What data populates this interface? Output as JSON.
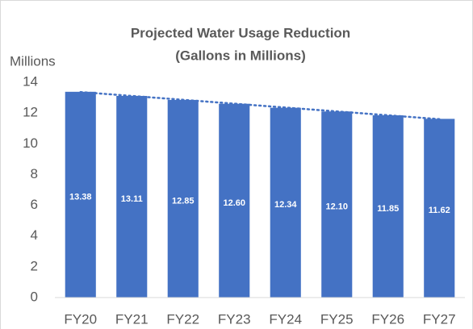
{
  "chart_data": {
    "type": "bar",
    "title": "Projected Water Usage Reduction",
    "subtitle": "(Gallons in Millions)",
    "y_label": "Millions",
    "categories": [
      "FY20",
      "FY21",
      "FY22",
      "FY23",
      "FY24",
      "FY25",
      "FY26",
      "FY27"
    ],
    "values": [
      13.38,
      13.11,
      12.85,
      12.6,
      12.34,
      12.1,
      11.85,
      11.62
    ],
    "value_labels": [
      "13.38",
      "13.11",
      "12.85",
      "12.60",
      "12.34",
      "12.10",
      "11.85",
      "11.62"
    ],
    "color": "#4472c4",
    "trendline": true,
    "ylim": [
      0,
      14
    ],
    "yticks": [
      0,
      2,
      4,
      6,
      8,
      10,
      12,
      14
    ],
    "grid": false
  }
}
